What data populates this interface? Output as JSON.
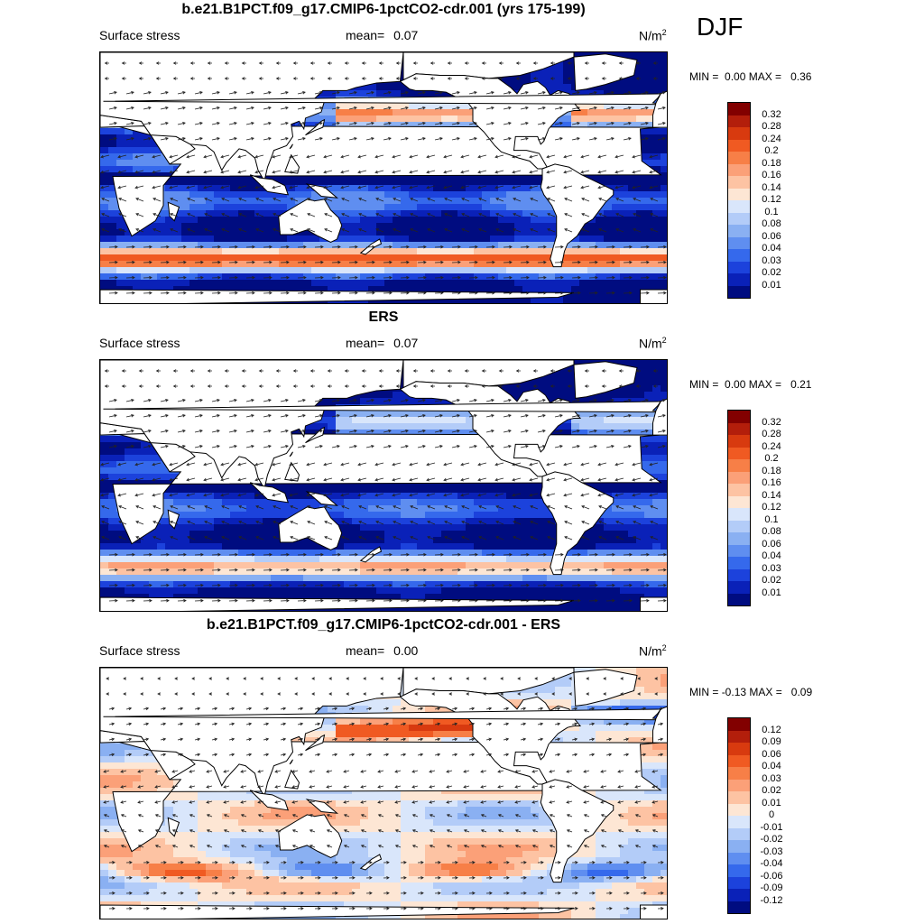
{
  "season": "DJF",
  "colors": {
    "land": "#ffffff",
    "coast": "#000000",
    "arrow": "#222222"
  },
  "panels": [
    {
      "title": "b.e21.B1PCT.f09_g17.CMIP6-1pctCO2-cdr.001 (yrs 175-199)",
      "variable": "Surface stress",
      "mean_label": "mean=",
      "mean_value": "0.07",
      "units": "N/m",
      "units_exp": "2",
      "min_label": "MIN =",
      "min_value": "0.00",
      "max_label": "MAX =",
      "max_value": "0.36",
      "field": "control",
      "colorbar_labels": [
        "0.32",
        "0.28",
        "0.24",
        "0.2",
        "0.18",
        "0.16",
        "0.14",
        "0.12",
        "0.1",
        "0.08",
        "0.06",
        "0.04",
        "0.03",
        "0.02",
        "0.01"
      ]
    },
    {
      "title": "ERS",
      "variable": "Surface stress",
      "mean_label": "mean=",
      "mean_value": "0.07",
      "units": "N/m",
      "units_exp": "2",
      "min_label": "MIN =",
      "min_value": "0.00",
      "max_label": "MAX =",
      "max_value": "0.21",
      "field": "obs",
      "colorbar_labels": [
        "0.32",
        "0.28",
        "0.24",
        "0.2",
        "0.18",
        "0.16",
        "0.14",
        "0.12",
        "0.1",
        "0.08",
        "0.06",
        "0.04",
        "0.03",
        "0.02",
        "0.01"
      ]
    },
    {
      "title": "b.e21.B1PCT.f09_g17.CMIP6-1pctCO2-cdr.001 - ERS",
      "variable": "Surface stress",
      "mean_label": "mean=",
      "mean_value": "0.00",
      "units": "N/m",
      "units_exp": "2",
      "min_label": "MIN =",
      "min_value": "-0.13",
      "max_label": "MAX =",
      "max_value": "0.09",
      "field": "diff",
      "colorbar_labels": [
        "0.12",
        "0.09",
        "0.06",
        "0.04",
        "0.03",
        "0.02",
        "0.01",
        "0",
        "-0.01",
        "-0.02",
        "-0.03",
        "-0.04",
        "-0.06",
        "-0.09",
        "-0.12"
      ]
    }
  ],
  "colorbar_colors": [
    "#820000",
    "#b31e0b",
    "#d83a0f",
    "#f05a22",
    "#f77f47",
    "#fba078",
    "#fdc3a3",
    "#fde6d4",
    "#d9e6fb",
    "#b3ccf8",
    "#8ab0f2",
    "#5f8ef0",
    "#3569ec",
    "#1c42dc",
    "#0a21b8",
    "#000c80"
  ],
  "chart_data": {
    "type": "heatmap",
    "maps": [
      {
        "title": "b.e21.B1PCT.f09_g17.CMIP6-1pctCO2-cdr.001 (yrs 175-199)",
        "variable": "Surface stress",
        "units": "N/m2",
        "mean": 0.07,
        "min": 0.0,
        "max": 0.36,
        "season": "DJF"
      },
      {
        "title": "ERS",
        "variable": "Surface stress",
        "units": "N/m2",
        "mean": 0.07,
        "min": 0.0,
        "max": 0.21,
        "season": "DJF"
      },
      {
        "title": "b.e21.B1PCT.f09_g17.CMIP6-1pctCO2-cdr.001 - ERS",
        "variable": "Surface stress",
        "units": "N/m2",
        "mean": 0.0,
        "min": -0.13,
        "max": 0.09,
        "season": "DJF"
      }
    ],
    "levels_abs": [
      0.01,
      0.02,
      0.03,
      0.04,
      0.06,
      0.08,
      0.1,
      0.12,
      0.14,
      0.16,
      0.18,
      0.2,
      0.24,
      0.28,
      0.32
    ],
    "levels_diff": [
      -0.12,
      -0.09,
      -0.06,
      -0.04,
      -0.03,
      -0.02,
      -0.01,
      0,
      0.01,
      0.02,
      0.03,
      0.04,
      0.06,
      0.09,
      0.12
    ]
  }
}
